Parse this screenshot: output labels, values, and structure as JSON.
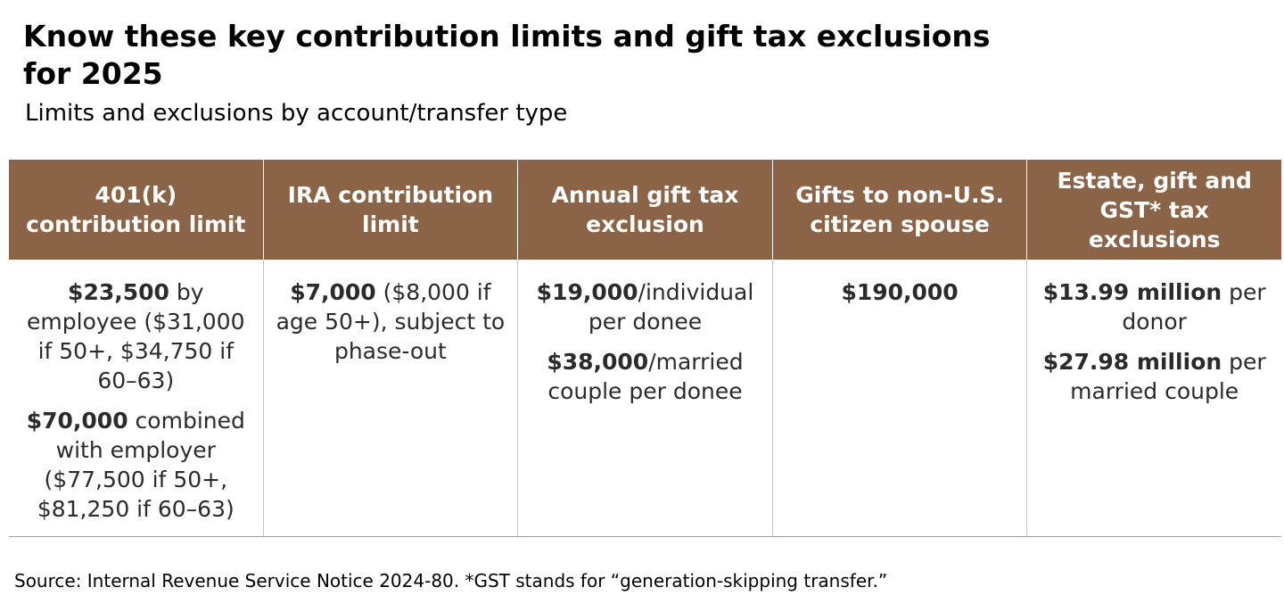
{
  "title": "Know these key contribution limits and gift tax exclusions for 2025",
  "subtitle": "Limits and exclusions by account/transfer type",
  "table": {
    "headers": [
      "401(k) contribution limit",
      "IRA contribution limit",
      "Annual gift tax exclusion",
      "Gifts to non-U.S. citizen spouse",
      "Estate, gift and GST* tax exclusions"
    ],
    "cells": [
      [
        {
          "bold": "$23,500",
          "text": " by employee ($31,000 if 50+, $34,750 if 60–63)"
        },
        {
          "bold": "$70,000",
          "text": " combined with employer ($77,500 if 50+, $81,250 if 60–63)"
        }
      ],
      [
        {
          "bold": "$7,000",
          "text": " ($8,000 if age 50+), subject to phase-out"
        }
      ],
      [
        {
          "bold": "$19,000",
          "text": "/individual per donee"
        },
        {
          "bold": "$38,000",
          "text": "/married couple per donee"
        }
      ],
      [
        {
          "bold": "$190,000",
          "text": ""
        }
      ],
      [
        {
          "bold": "$13.99 million",
          "text": " per donor"
        },
        {
          "bold": "$27.98 million",
          "text": " per married couple"
        }
      ]
    ]
  },
  "source": "Source: Internal Revenue Service Notice 2024-80. *GST stands for “generation-skipping transfer.”",
  "colors": {
    "header_bg": "#8b6346",
    "header_text": "#ffffff",
    "body_text": "#2b2b2b",
    "rule": "#a0a0a0"
  }
}
